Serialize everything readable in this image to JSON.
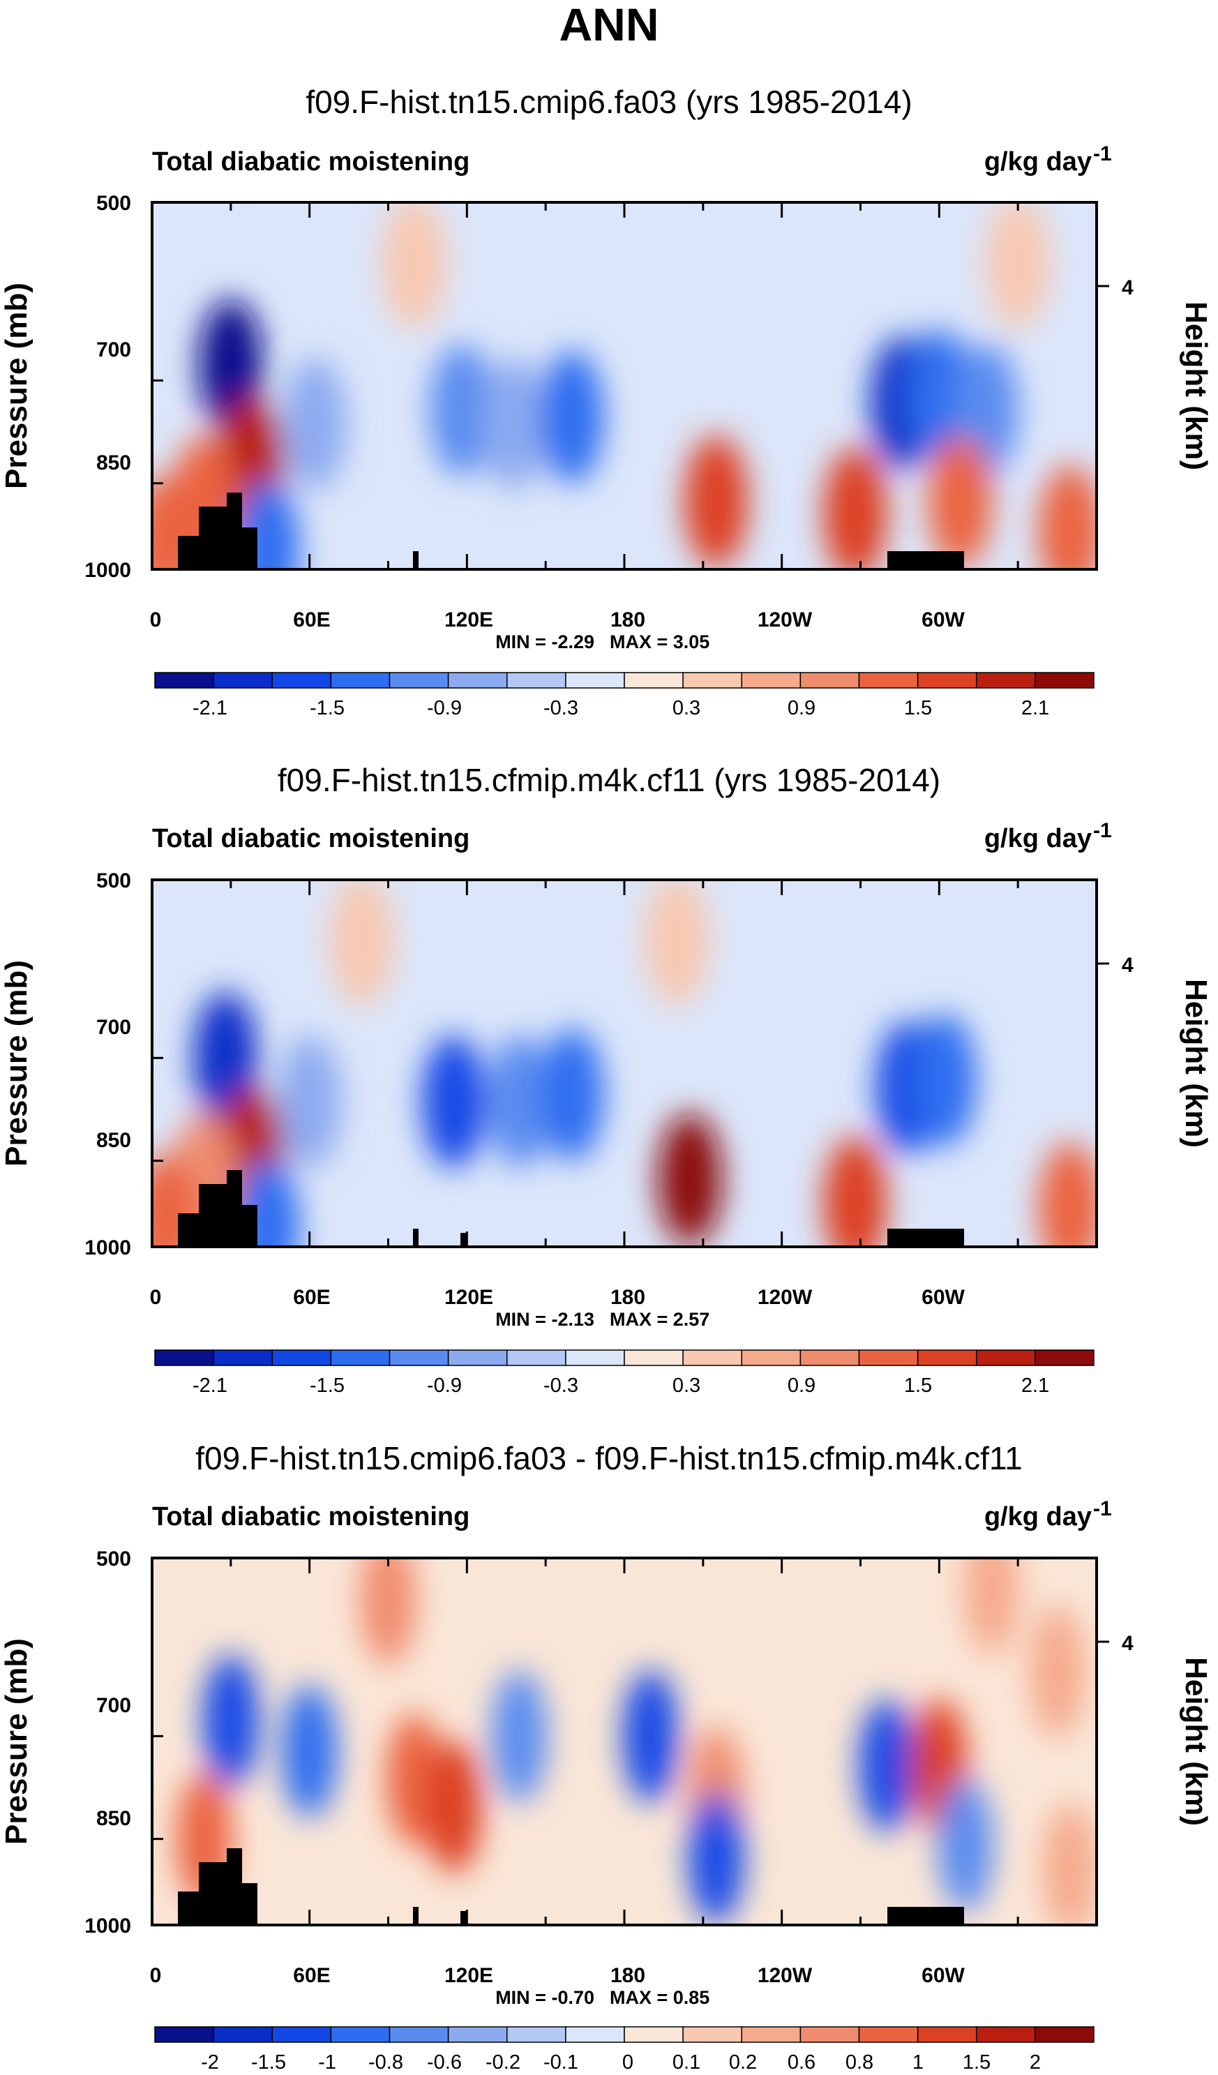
{
  "title": "ANN",
  "colors": {
    "neg": [
      "#08108c",
      "#0a2dc8",
      "#1248e6",
      "#2d6ef0",
      "#5a8cf0",
      "#8caaf0",
      "#b4c8f5",
      "#dce6fa"
    ],
    "pos": [
      "#fae6d7",
      "#f8c8b0",
      "#f5aa8c",
      "#f08c6e",
      "#eb6441",
      "#dc4123",
      "#b91e0f",
      "#8c0a0a"
    ],
    "terrain": "#000000"
  },
  "chart_data": [
    {
      "type": "heatmap",
      "subtitle": "f09.F-hist.tn15.cmip6.fa03 (yrs 1985-2014)",
      "left_label": "Total diabatic moistening",
      "units": "g/kg day",
      "units_exp": "-1",
      "ylabel": "Pressure (mb)",
      "ylabel_right": "Height (km)",
      "y_ticks": [
        "500",
        "700",
        "850",
        "1000"
      ],
      "y_right_ticks": [
        "4"
      ],
      "x_ticks": [
        "0",
        "60E",
        "120E",
        "180",
        "120W",
        "60W"
      ],
      "xlim": [
        0,
        360
      ],
      "ylim": [
        1000,
        500
      ],
      "min_label": "MIN = -2.29",
      "max_label": "MAX =  3.05",
      "colorbar_labels": [
        "-2.1",
        "-1.5",
        "-0.9",
        "-0.3",
        "0.3",
        "0.9",
        "1.5",
        "2.1"
      ],
      "features": [
        {
          "lon": 30,
          "p": 680,
          "a": -2.1
        },
        {
          "lon": 38,
          "p": 820,
          "a": 2.0
        },
        {
          "lon": 20,
          "p": 880,
          "a": 1.2
        },
        {
          "lon": 44,
          "p": 960,
          "a": -1.4
        },
        {
          "lon": 62,
          "p": 760,
          "a": -0.7
        },
        {
          "lon": 118,
          "p": 740,
          "a": -1.1
        },
        {
          "lon": 138,
          "p": 760,
          "a": -0.7
        },
        {
          "lon": 160,
          "p": 750,
          "a": -1.3
        },
        {
          "lon": 215,
          "p": 880,
          "a": 1.7
        },
        {
          "lon": 268,
          "p": 900,
          "a": 1.7
        },
        {
          "lon": 286,
          "p": 730,
          "a": -1.8
        },
        {
          "lon": 300,
          "p": 720,
          "a": -1.3
        },
        {
          "lon": 318,
          "p": 740,
          "a": -0.9
        },
        {
          "lon": 308,
          "p": 880,
          "a": 1.3
        },
        {
          "lon": 350,
          "p": 930,
          "a": 1.4
        },
        {
          "lon": 330,
          "p": 560,
          "a": 0.3
        },
        {
          "lon": 100,
          "p": 560,
          "a": 0.3
        },
        {
          "lon": 5,
          "p": 950,
          "a": 1.4
        }
      ]
    },
    {
      "type": "heatmap",
      "subtitle": "f09.F-hist.tn15.cfmip.m4k.cf11 (yrs 1985-2014)",
      "left_label": "Total diabatic moistening",
      "units": "g/kg day",
      "units_exp": "-1",
      "ylabel": "Pressure (mb)",
      "ylabel_right": "Height (km)",
      "y_ticks": [
        "500",
        "700",
        "850",
        "1000"
      ],
      "y_right_ticks": [
        "4"
      ],
      "x_ticks": [
        "0",
        "60E",
        "120E",
        "180",
        "120W",
        "60W"
      ],
      "xlim": [
        0,
        360
      ],
      "ylim": [
        1000,
        500
      ],
      "min_label": "MIN = -2.13",
      "max_label": "MAX =  2.57",
      "colorbar_labels": [
        "-2.1",
        "-1.5",
        "-0.9",
        "-0.3",
        "0.3",
        "0.9",
        "1.5",
        "2.1"
      ],
      "features": [
        {
          "lon": 28,
          "p": 700,
          "a": -1.8
        },
        {
          "lon": 38,
          "p": 840,
          "a": 1.8
        },
        {
          "lon": 20,
          "p": 880,
          "a": 1.1
        },
        {
          "lon": 44,
          "p": 960,
          "a": -1.3
        },
        {
          "lon": 60,
          "p": 760,
          "a": -0.7
        },
        {
          "lon": 115,
          "p": 760,
          "a": -1.5
        },
        {
          "lon": 140,
          "p": 760,
          "a": -1.0
        },
        {
          "lon": 160,
          "p": 750,
          "a": -1.2
        },
        {
          "lon": 205,
          "p": 880,
          "a": 2.1
        },
        {
          "lon": 268,
          "p": 920,
          "a": 1.6
        },
        {
          "lon": 288,
          "p": 740,
          "a": -1.7
        },
        {
          "lon": 302,
          "p": 730,
          "a": -1.2
        },
        {
          "lon": 350,
          "p": 930,
          "a": 1.3
        },
        {
          "lon": 200,
          "p": 560,
          "a": 0.3
        },
        {
          "lon": 80,
          "p": 560,
          "a": 0.3
        },
        {
          "lon": 5,
          "p": 950,
          "a": 1.3
        }
      ]
    },
    {
      "type": "heatmap",
      "subtitle": "f09.F-hist.tn15.cmip6.fa03 - f09.F-hist.tn15.cfmip.m4k.cf11",
      "left_label": "Total diabatic moistening",
      "units": "g/kg day",
      "units_exp": "-1",
      "ylabel": "Pressure (mb)",
      "ylabel_right": "Height (km)",
      "y_ticks": [
        "500",
        "700",
        "850",
        "1000"
      ],
      "y_right_ticks": [
        "4"
      ],
      "x_ticks": [
        "0",
        "60E",
        "120E",
        "180",
        "120W",
        "60W"
      ],
      "xlim": [
        0,
        360
      ],
      "ylim": [
        1000,
        500
      ],
      "min_label": "MIN = -0.70",
      "max_label": "MAX =  0.85",
      "colorbar_labels": [
        "-2",
        "-1.5",
        "-1",
        "-0.8",
        "-0.6",
        "-0.2",
        "-0.1",
        "0",
        "0.1",
        "0.2",
        "0.6",
        "0.8",
        "1",
        "1.5",
        "2"
      ],
      "features": [
        {
          "lon": 30,
          "p": 680,
          "a": -0.6
        },
        {
          "lon": 60,
          "p": 720,
          "a": -0.5
        },
        {
          "lon": 100,
          "p": 760,
          "a": 0.5
        },
        {
          "lon": 115,
          "p": 800,
          "a": 0.6
        },
        {
          "lon": 140,
          "p": 700,
          "a": -0.35
        },
        {
          "lon": 190,
          "p": 700,
          "a": -0.55
        },
        {
          "lon": 215,
          "p": 780,
          "a": 0.35
        },
        {
          "lon": 215,
          "p": 880,
          "a": -0.55
        },
        {
          "lon": 280,
          "p": 740,
          "a": -0.55
        },
        {
          "lon": 300,
          "p": 740,
          "a": 0.6
        },
        {
          "lon": 310,
          "p": 860,
          "a": -0.4
        },
        {
          "lon": 20,
          "p": 850,
          "a": 0.5
        },
        {
          "lon": 90,
          "p": 540,
          "a": 0.35
        },
        {
          "lon": 320,
          "p": 530,
          "a": 0.3
        },
        {
          "lon": 345,
          "p": 620,
          "a": 0.3
        },
        {
          "lon": 350,
          "p": 900,
          "a": 0.3
        }
      ]
    }
  ]
}
